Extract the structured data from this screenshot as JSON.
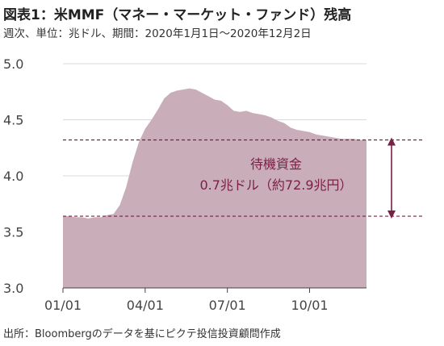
{
  "header": {
    "title": "図表1：米MMF（マネー・マーケット・ファンド）残高",
    "subtitle": "週次、単位：兆ドル、期間：2020年1月1日～2020年12月2日"
  },
  "source": "出所：Bloombergのデータを基にピクテ投信投資顧問作成",
  "colors": {
    "area": "#c9adb9",
    "annotation": "#7a1f45",
    "grid": "#d9d9d9",
    "dashed": "#7a1f45"
  },
  "chart_data": {
    "type": "area",
    "title": "",
    "xlabel": "",
    "ylabel": "",
    "ylim": [
      3.0,
      5.0
    ],
    "yticks": [
      "3.0",
      "3.5",
      "4.0",
      "4.5",
      "5.0"
    ],
    "xtick_labels": [
      "01/01",
      "04/01",
      "07/01",
      "10/01"
    ],
    "xtick_weeks": [
      0,
      13,
      26,
      39
    ],
    "grid": true,
    "series": [
      {
        "values": [
          3.64,
          3.64,
          3.63,
          3.63,
          3.62,
          3.63,
          3.63,
          3.65,
          3.66,
          3.74,
          3.9,
          4.12,
          4.3,
          4.42,
          4.5,
          4.59,
          4.69,
          4.74,
          4.76,
          4.77,
          4.78,
          4.77,
          4.74,
          4.71,
          4.68,
          4.67,
          4.63,
          4.58,
          4.57,
          4.58,
          4.56,
          4.55,
          4.54,
          4.52,
          4.49,
          4.47,
          4.43,
          4.41,
          4.4,
          4.39,
          4.37,
          4.36,
          4.35,
          4.34,
          4.33,
          4.33,
          4.33,
          4.32,
          4.32
        ]
      }
    ],
    "reference_lines": [
      {
        "y": 4.32,
        "style": "dashed"
      },
      {
        "y": 3.64,
        "style": "dashed"
      }
    ],
    "annotation": {
      "line1": "待機資金",
      "line2": "0.7兆ドル（約72.9兆円）"
    }
  }
}
